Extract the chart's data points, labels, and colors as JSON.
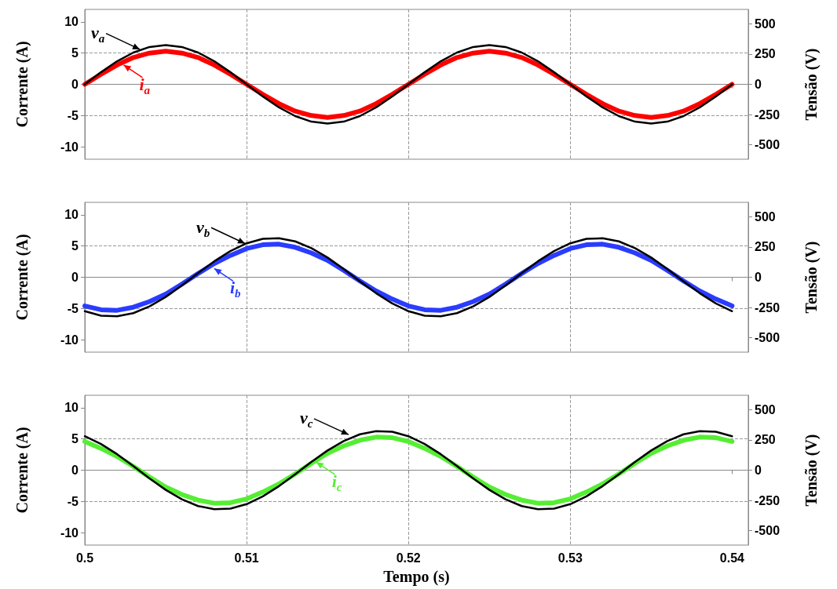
{
  "chart_data": [
    {
      "type": "line",
      "xlim": [
        0.5,
        0.541
      ],
      "xticks": [
        0.5,
        0.51,
        0.52,
        0.53,
        0.54
      ],
      "ylim": [
        -12,
        12
      ],
      "yticks": [
        -10,
        -5,
        0,
        5,
        10
      ],
      "y2lim": [
        -620,
        620
      ],
      "y2ticks": [
        -500,
        -250,
        0,
        250,
        500
      ],
      "ylabel": "Corrente (A)",
      "y2label": "Tensão (V)",
      "grid": true,
      "tick_labels": "y",
      "marker": "none",
      "x": [
        0.5,
        0.501,
        0.502,
        0.503,
        0.504,
        0.505,
        0.506,
        0.507,
        0.508,
        0.509,
        0.51,
        0.511,
        0.512,
        0.513,
        0.514,
        0.515,
        0.516,
        0.517,
        0.518,
        0.519,
        0.52,
        0.521,
        0.522,
        0.523,
        0.524,
        0.525,
        0.526,
        0.527,
        0.528,
        0.529,
        0.53,
        0.531,
        0.532,
        0.533,
        0.534,
        0.535,
        0.536,
        0.537,
        0.538,
        0.539,
        0.54
      ],
      "series": [
        {
          "color": "#ff0000",
          "values": [
            0,
            1.6,
            3.1,
            4.3,
            5.0,
            5.3,
            5.0,
            4.3,
            3.1,
            1.6,
            0,
            -1.6,
            -3.1,
            -4.3,
            -5.0,
            -5.3,
            -5.0,
            -4.3,
            -3.1,
            -1.6,
            0,
            1.6,
            3.1,
            4.3,
            5.0,
            5.3,
            5.0,
            4.3,
            3.1,
            1.6,
            0,
            -1.6,
            -3.1,
            -4.3,
            -5.0,
            -5.3,
            -5.0,
            -4.3,
            -3.1,
            -1.6,
            0
          ]
        },
        {
          "color": "#000000",
          "axis": "y2",
          "values": [
            0,
            100,
            191,
            263,
            309,
            325,
            309,
            263,
            191,
            100,
            0,
            -100,
            -191,
            -263,
            -309,
            -325,
            -309,
            -263,
            -191,
            -100,
            0,
            100,
            191,
            263,
            309,
            325,
            309,
            263,
            191,
            100,
            0,
            -100,
            -191,
            -263,
            -309,
            -325,
            -309,
            -263,
            -191,
            -100,
            0
          ]
        }
      ],
      "annotations": [
        {
          "text": "i$_{a}$",
          "x": 0.5024,
          "y": 3.1
        },
        {
          "text": "v$_{a}$",
          "x": 0.5034,
          "y": 5.6
        }
      ]
    },
    {
      "type": "line",
      "xlim": [
        0.5,
        0.541
      ],
      "xticks": [
        0.5,
        0.51,
        0.52,
        0.53,
        0.54
      ],
      "ylim": [
        -12,
        12
      ],
      "yticks": [
        -10,
        -5,
        0,
        5,
        10
      ],
      "y2lim": [
        -620,
        620
      ],
      "y2ticks": [
        -500,
        -250,
        0,
        250,
        500
      ],
      "ylabel": "Corrente (A)",
      "y2label": "Tensão (V)",
      "grid": true,
      "tick_labels": "y",
      "marker": "none",
      "x": [
        0.5,
        0.501,
        0.502,
        0.503,
        0.504,
        0.505,
        0.506,
        0.507,
        0.508,
        0.509,
        0.51,
        0.511,
        0.512,
        0.513,
        0.514,
        0.515,
        0.516,
        0.517,
        0.518,
        0.519,
        0.52,
        0.521,
        0.522,
        0.523,
        0.524,
        0.525,
        0.526,
        0.527,
        0.528,
        0.529,
        0.53,
        0.531,
        0.532,
        0.533,
        0.534,
        0.535,
        0.536,
        0.537,
        0.538,
        0.539,
        0.54
      ],
      "series": [
        {
          "color": "#2a3cff",
          "values": [
            -4.6,
            -5.2,
            -5.3,
            -4.8,
            -3.9,
            -2.7,
            -1.1,
            0.6,
            2.2,
            3.5,
            4.6,
            5.2,
            5.3,
            4.8,
            3.9,
            2.7,
            1.1,
            -0.6,
            -2.2,
            -3.5,
            -4.6,
            -5.2,
            -5.3,
            -4.8,
            -3.9,
            -2.7,
            -1.1,
            0.6,
            2.2,
            3.5,
            4.6,
            5.2,
            5.3,
            4.8,
            3.9,
            2.7,
            1.1,
            -0.6,
            -2.2,
            -3.5,
            -4.6
          ]
        },
        {
          "color": "#000000",
          "axis": "y2",
          "values": [
            -281,
            -318,
            -323,
            -297,
            -241,
            -163,
            -68,
            34,
            132,
            217,
            281,
            318,
            323,
            297,
            241,
            163,
            68,
            -34,
            -132,
            -217,
            -281,
            -318,
            -323,
            -297,
            -241,
            -163,
            -68,
            34,
            132,
            217,
            281,
            318,
            323,
            297,
            241,
            163,
            68,
            -34,
            -132,
            -217,
            -281
          ]
        }
      ],
      "annotations": [
        {
          "text": "i$_{b}$",
          "x": 0.508,
          "y": 1.4
        },
        {
          "text": "v$_{b}$",
          "x": 0.5099,
          "y": 5.4
        }
      ]
    },
    {
      "type": "line",
      "xlim": [
        0.5,
        0.541
      ],
      "xticks": [
        0.5,
        0.51,
        0.52,
        0.53,
        0.54
      ],
      "ylim": [
        -12,
        12
      ],
      "yticks": [
        -10,
        -5,
        0,
        5,
        10
      ],
      "y2lim": [
        -620,
        620
      ],
      "y2ticks": [
        -500,
        -250,
        0,
        250,
        500
      ],
      "xlabel": "Tempo (s)",
      "ylabel": "Corrente (A)",
      "y2label": "Tensão (V)",
      "grid": true,
      "marker": "none",
      "x": [
        0.5,
        0.501,
        0.502,
        0.503,
        0.504,
        0.505,
        0.506,
        0.507,
        0.508,
        0.509,
        0.51,
        0.511,
        0.512,
        0.513,
        0.514,
        0.515,
        0.516,
        0.517,
        0.518,
        0.519,
        0.52,
        0.521,
        0.522,
        0.523,
        0.524,
        0.525,
        0.526,
        0.527,
        0.528,
        0.529,
        0.53,
        0.531,
        0.532,
        0.533,
        0.534,
        0.535,
        0.536,
        0.537,
        0.538,
        0.539,
        0.54
      ],
      "series": [
        {
          "color": "#55ee33",
          "values": [
            4.6,
            3.5,
            2.2,
            0.6,
            -1.1,
            -2.7,
            -3.9,
            -4.8,
            -5.3,
            -5.2,
            -4.6,
            -3.5,
            -2.2,
            -0.6,
            1.1,
            2.7,
            3.9,
            4.8,
            5.3,
            5.2,
            4.6,
            3.5,
            2.2,
            0.6,
            -1.1,
            -2.7,
            -3.9,
            -4.8,
            -5.3,
            -5.2,
            -4.6,
            -3.5,
            -2.2,
            -0.6,
            1.1,
            2.7,
            3.9,
            4.8,
            5.3,
            5.2,
            4.6
          ]
        },
        {
          "color": "#000000",
          "axis": "y2",
          "values": [
            281,
            217,
            132,
            34,
            -68,
            -163,
            -241,
            -297,
            -323,
            -318,
            -281,
            -217,
            -132,
            -34,
            68,
            163,
            241,
            297,
            323,
            318,
            281,
            217,
            132,
            34,
            -68,
            -163,
            -241,
            -297,
            -323,
            -318,
            -281,
            -217,
            -132,
            -34,
            68,
            163,
            241,
            297,
            323,
            318,
            281
          ]
        }
      ],
      "annotations": [
        {
          "text": "i$_{c}$",
          "x": 0.5143,
          "y": 1.3
        },
        {
          "text": "v$_{c}$",
          "x": 0.5163,
          "y": 5.7
        }
      ]
    }
  ]
}
